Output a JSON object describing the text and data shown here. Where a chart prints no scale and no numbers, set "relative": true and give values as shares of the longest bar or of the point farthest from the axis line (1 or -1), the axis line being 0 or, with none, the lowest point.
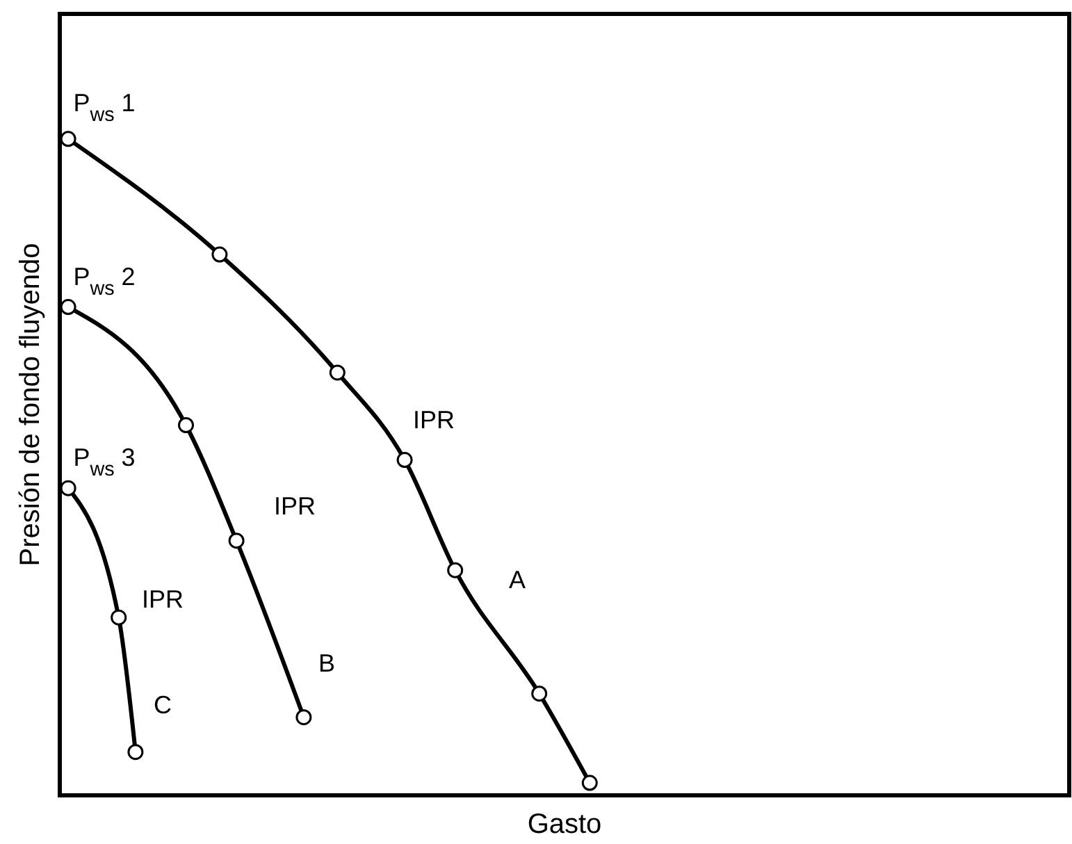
{
  "chart_data": {
    "type": "line",
    "relative": true,
    "xlabel": "Gasto",
    "ylabel": "Presión de fondo fluyendo",
    "marker": "circle",
    "line_style": "solid",
    "categories": [
      null,
      null,
      null,
      null,
      null,
      null,
      null,
      null,
      null,
      null,
      null,
      null,
      null,
      null,
      null,
      null,
      null,
      null,
      null,
      null,
      null,
      null,
      null,
      null,
      null,
      null,
      null,
      null,
      null,
      null,
      null,
      null,
      null,
      null,
      null,
      null,
      null,
      null,
      null,
      null,
      null,
      null,
      null,
      null,
      null,
      null,
      null,
      null,
      null,
      null,
      null,
      null,
      null,
      null,
      null,
      null,
      null,
      null,
      null,
      null
    ],
    "series": [
      {
        "color": "#000000",
        "values": [
          1,
          null,
          null,
          null,
          null,
          null,
          null,
          null,
          null,
          0.824,
          null,
          null,
          null,
          null,
          null,
          null,
          0.644,
          null,
          null,
          null,
          0.511,
          null,
          null,
          0.343,
          null,
          null,
          null,
          null,
          0.155,
          null,
          null,
          0.019,
          null,
          null,
          null,
          null,
          null,
          null,
          null,
          null,
          null,
          null,
          null,
          null,
          null,
          null,
          null,
          null,
          null,
          null,
          null,
          null,
          null,
          null,
          null,
          null,
          null,
          null,
          null,
          null
        ]
      },
      {
        "color": "#000000",
        "values": [
          0.744,
          null,
          null,
          null,
          null,
          null,
          null,
          0.564,
          null,
          null,
          0.388,
          null,
          null,
          null,
          0.119,
          null,
          null,
          null,
          null,
          null,
          null,
          null,
          null,
          null,
          null,
          null,
          null,
          null,
          null,
          null,
          null,
          null,
          null,
          null,
          null,
          null,
          null,
          null,
          null,
          null,
          null,
          null,
          null,
          null,
          null,
          null,
          null,
          null,
          null,
          null,
          null,
          null,
          null,
          null,
          null,
          null,
          null,
          null,
          null,
          null
        ]
      },
      {
        "color": "#000000",
        "values": [
          0.468,
          null,
          null,
          0.271,
          0.066,
          null,
          null,
          null,
          null,
          null,
          null,
          null,
          null,
          null,
          null,
          null,
          null,
          null,
          null,
          null,
          null,
          null,
          null,
          null,
          null,
          null,
          null,
          null,
          null,
          null,
          null,
          null,
          null,
          null,
          null,
          null,
          null,
          null,
          null,
          null,
          null,
          null,
          null,
          null,
          null,
          null,
          null,
          null,
          null,
          null,
          null,
          null,
          null,
          null,
          null,
          null,
          null,
          null,
          null,
          null
        ]
      }
    ],
    "annotations": [
      "P$_{ws}$ 1",
      "P$_{ws}$ 2",
      "P$_{ws}$ 3",
      "IPR",
      "A",
      "IPR",
      "B",
      "IPR",
      "C"
    ]
  }
}
